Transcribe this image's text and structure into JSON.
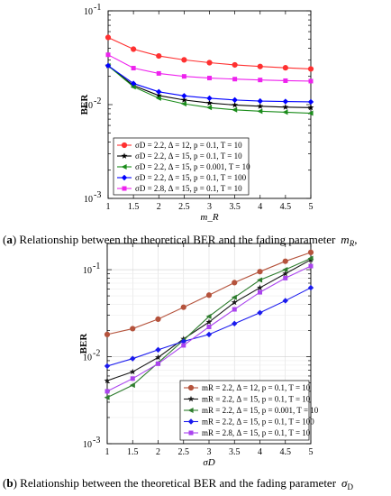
{
  "chart_data": [
    {
      "type": "line",
      "panel": "a",
      "title": "",
      "xlabel": "m_R",
      "ylabel": "BER",
      "x": [
        1,
        1.5,
        2,
        2.5,
        3,
        3.5,
        4,
        4.5,
        5
      ],
      "xlim": [
        1,
        5
      ],
      "ylim": [
        0.001,
        0.1
      ],
      "yscale": "log",
      "xticks": [
        "1",
        "1.5",
        "2",
        "2.5",
        "3",
        "3.5",
        "4",
        "4.5",
        "5"
      ],
      "yticks": [
        {
          "v": 0.001,
          "exp": "-3"
        },
        {
          "v": 0.01,
          "exp": "-2"
        },
        {
          "v": 0.1,
          "exp": "-1"
        }
      ],
      "grid": false,
      "legend_position": "bottom-left",
      "series": [
        {
          "name": "σD = 2.2,  Δ = 12,  p = 0.1,  T = 10",
          "color": "#ff3030",
          "marker": "circle",
          "values": [
            0.052,
            0.039,
            0.033,
            0.03,
            0.028,
            0.0265,
            0.0255,
            0.0247,
            0.024
          ]
        },
        {
          "name": "σD = 2.2,  Δ = 15,  p = 0.1,  T = 10",
          "color": "#000000",
          "marker": "star",
          "values": [
            0.026,
            0.016,
            0.0125,
            0.0112,
            0.0104,
            0.0099,
            0.0096,
            0.0094,
            0.0093
          ]
        },
        {
          "name": "σD = 2.2,  Δ = 15,  p = 0.001,  T = 10",
          "color": "#1a8c1a",
          "marker": "triangle-left",
          "values": [
            0.026,
            0.0155,
            0.0117,
            0.0102,
            0.0093,
            0.0088,
            0.0085,
            0.0083,
            0.0081
          ]
        },
        {
          "name": "σD = 2.2,  Δ = 15,  p = 0.1,  T = 100",
          "color": "#0000ff",
          "marker": "diamond",
          "values": [
            0.026,
            0.0168,
            0.0137,
            0.0124,
            0.0117,
            0.0112,
            0.0109,
            0.0108,
            0.0107
          ]
        },
        {
          "name": "σD = 2.8,  Δ = 15,  p = 0.1,  T = 10",
          "color": "#ee22ee",
          "marker": "square",
          "values": [
            0.034,
            0.0245,
            0.0215,
            0.02,
            0.0192,
            0.0187,
            0.0183,
            0.018,
            0.0178
          ]
        }
      ]
    },
    {
      "type": "line",
      "panel": "b",
      "title": "",
      "xlabel": "σD",
      "ylabel": "BER",
      "x": [
        1,
        1.5,
        2,
        2.5,
        3,
        3.5,
        4,
        4.5,
        5
      ],
      "xlim": [
        1,
        5
      ],
      "ylim": [
        0.001,
        0.2
      ],
      "yscale": "log",
      "xticks": [
        "1",
        "1.5",
        "2",
        "2.5",
        "3",
        "3.5",
        "4",
        "4.5",
        "5"
      ],
      "yticks": [
        {
          "v": 0.001,
          "exp": "-3"
        },
        {
          "v": 0.01,
          "exp": "-2"
        },
        {
          "v": 0.1,
          "exp": "-1"
        }
      ],
      "grid": true,
      "legend_position": "bottom-right",
      "series": [
        {
          "name": "mR = 2.2,  Δ = 12,  p = 0.1,  T = 10",
          "color": "#b5533c",
          "marker": "circle",
          "values": [
            0.018,
            0.021,
            0.027,
            0.037,
            0.051,
            0.071,
            0.095,
            0.125,
            0.158
          ]
        },
        {
          "name": "mR = 2.2,  Δ = 15,  p = 0.1,  T = 10",
          "color": "#1a1a1a",
          "marker": "star",
          "values": [
            0.0053,
            0.0067,
            0.0098,
            0.016,
            0.025,
            0.042,
            0.062,
            0.09,
            0.13
          ]
        },
        {
          "name": "mR = 2.2,  Δ = 15,  p = 0.001,  T = 10",
          "color": "#2e7d2e",
          "marker": "triangle-left",
          "values": [
            0.0034,
            0.0047,
            0.0085,
            0.0155,
            0.029,
            0.048,
            0.076,
            0.1,
            0.135
          ]
        },
        {
          "name": "mR = 2.2,  Δ = 15,  p = 0.1,  T = 100",
          "color": "#1a1aee",
          "marker": "diamond",
          "values": [
            0.0078,
            0.0095,
            0.012,
            0.015,
            0.018,
            0.024,
            0.032,
            0.044,
            0.062
          ]
        },
        {
          "name": "mR = 2.8,  Δ = 15,  p = 0.1,  T = 10",
          "color": "#aa44ee",
          "marker": "square",
          "values": [
            0.004,
            0.0056,
            0.0083,
            0.0135,
            0.022,
            0.035,
            0.055,
            0.08,
            0.11
          ]
        }
      ]
    }
  ],
  "captions": {
    "a_prefix": "(",
    "a_letter": "a",
    "a_text": ") Relationship between the theoretical BER and the fading parameter",
    "a_symbol": "m",
    "a_sub": "R",
    "a_tail": ",",
    "b_prefix": "(",
    "b_letter": "b",
    "b_text": ") Relationship between the theoretical BER and the fading parameter",
    "b_symbol": "σ",
    "b_sub": "D"
  }
}
